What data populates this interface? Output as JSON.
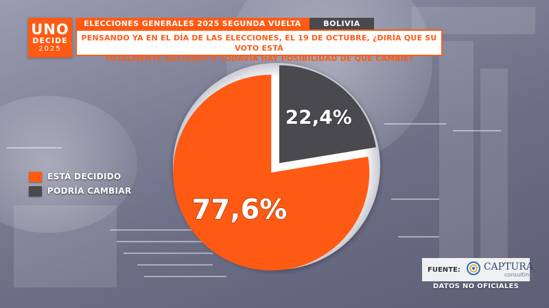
{
  "logo": {
    "line1": "UNO",
    "line2": "DECIDE",
    "line3": "2025"
  },
  "header": {
    "title": "ELECCIONES GENERALES 2025 SEGUNDA VUELTA",
    "country": "BOLIVIA",
    "question_line1": "PENSANDO YA EN EL DÍA DE LAS ELECCIONES, EL 19 DE OCTUBRE, ¿DIRÍA QUE SU VOTO ESTÁ",
    "question_line2": "TOTALMENTE DECIDIDO O TODAVÍA HAY POSIBILIDAD DE QUE CAMBIE?"
  },
  "chart_data": {
    "type": "pie",
    "categories": [
      "ESTÁ DECIDIDO",
      "PODRÍA CAMBIAR"
    ],
    "values": [
      77.6,
      22.4
    ],
    "data_labels": [
      "77,6%",
      "22,4%"
    ],
    "colors": [
      "#ff5a14",
      "#4a4a4e"
    ],
    "legend_position": "left"
  },
  "legend": {
    "items": [
      {
        "label": "ESTÁ DECIDIDO",
        "color": "#ff5a14"
      },
      {
        "label": "PODRÍA CAMBIAR",
        "color": "#4a4a4e"
      }
    ]
  },
  "source": {
    "label": "FUENTE:",
    "name": "CAPTURA",
    "sub": "consulting",
    "disclaimer": "DATOS NO OFICIALES"
  },
  "colors": {
    "accent": "#ff5a14",
    "dark": "#4a4a4e"
  }
}
